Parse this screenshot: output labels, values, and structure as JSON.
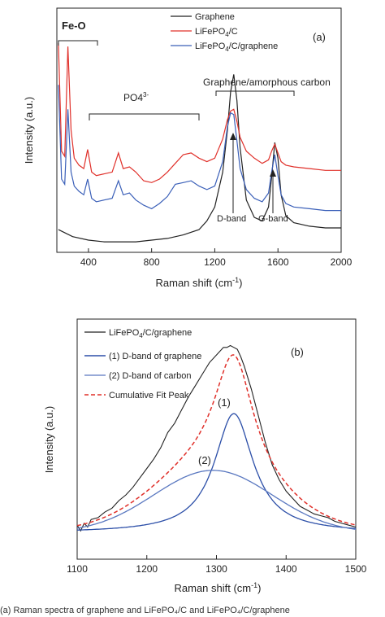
{
  "chart_data": [
    {
      "type": "line",
      "panel_label": "(a)",
      "xlabel": "Raman shift (cm",
      "xlabel_sup": "-1",
      "xlabel_close": ")",
      "ylabel": "Intensity (a.u.)",
      "xlim": [
        200,
        2000
      ],
      "xticks": [
        400,
        800,
        1200,
        1600,
        2000
      ],
      "legend": [
        {
          "name": "Graphene",
          "color": "#222222"
        },
        {
          "name": "LiFePO",
          "sub": "4",
          "rest": "/C",
          "color": "#e0302a"
        },
        {
          "name": "LiFePO",
          "sub": "4",
          "rest": "/C/graphene",
          "color": "#3a5fb8"
        }
      ],
      "annotations": {
        "fe_o": "Fe-O",
        "po4": "PO4",
        "po4_sup": "3-",
        "graphene_carbon": "Graphene/amorphous carbon",
        "d_band": "D-band",
        "g_band": "G-band"
      },
      "series": [
        {
          "name": "Graphene",
          "color": "#222222",
          "x": [
            210,
            300,
            400,
            500,
            600,
            700,
            800,
            900,
            1000,
            1100,
            1150,
            1200,
            1250,
            1280,
            1300,
            1320,
            1340,
            1360,
            1400,
            1450,
            1500,
            1540,
            1560,
            1580,
            1600,
            1620,
            1650,
            1700,
            1800,
            1900,
            2000
          ],
          "y": [
            1.3,
            0.9,
            0.7,
            0.6,
            0.6,
            0.6,
            0.7,
            0.8,
            1.0,
            1.3,
            1.8,
            2.6,
            4.6,
            7.0,
            9.2,
            10.2,
            8.7,
            6.0,
            3.0,
            2.0,
            1.8,
            2.6,
            4.3,
            6.3,
            5.4,
            3.3,
            2.1,
            1.7,
            1.5,
            1.4,
            1.4
          ]
        },
        {
          "name": "LiFePO4/C",
          "color": "#e0302a",
          "x": [
            210,
            230,
            250,
            270,
            290,
            310,
            340,
            370,
            395,
            420,
            450,
            500,
            550,
            590,
            620,
            660,
            700,
            750,
            800,
            850,
            900,
            950,
            1000,
            1050,
            1100,
            1150,
            1200,
            1250,
            1280,
            1300,
            1320,
            1340,
            1360,
            1400,
            1450,
            1500,
            1540,
            1560,
            1580,
            1600,
            1620,
            1650,
            1700,
            1800,
            1900,
            2000
          ],
          "y": [
            12.0,
            5.8,
            5.5,
            11.8,
            7.0,
            5.4,
            5.0,
            4.8,
            5.9,
            4.6,
            4.4,
            4.5,
            4.6,
            5.7,
            4.8,
            4.9,
            4.6,
            4.1,
            4.0,
            4.2,
            4.6,
            5.1,
            5.6,
            5.7,
            5.4,
            5.2,
            5.4,
            6.5,
            7.6,
            8.1,
            8.2,
            7.5,
            6.6,
            5.8,
            5.4,
            5.1,
            5.3,
            5.8,
            6.2,
            5.7,
            5.2,
            5.0,
            4.9,
            4.8,
            4.7,
            4.7
          ]
        },
        {
          "name": "LiFePO4/C/graphene",
          "color": "#3a5fb8",
          "x": [
            210,
            230,
            250,
            270,
            290,
            310,
            340,
            370,
            395,
            420,
            450,
            500,
            550,
            590,
            620,
            660,
            700,
            750,
            800,
            850,
            900,
            950,
            1000,
            1050,
            1100,
            1150,
            1200,
            1250,
            1280,
            1300,
            1320,
            1340,
            1360,
            1400,
            1450,
            1500,
            1540,
            1560,
            1580,
            1600,
            1620,
            1650,
            1700,
            1800,
            1900,
            2000
          ],
          "y": [
            9.6,
            4.2,
            3.9,
            8.2,
            4.6,
            3.8,
            3.5,
            3.3,
            4.2,
            3.1,
            2.9,
            3.0,
            3.1,
            4.1,
            3.3,
            3.4,
            3.0,
            2.7,
            2.5,
            2.8,
            3.2,
            3.9,
            4.0,
            4.1,
            3.8,
            3.6,
            3.8,
            5.2,
            7.2,
            8.0,
            7.9,
            6.4,
            4.8,
            3.6,
            3.1,
            2.9,
            3.4,
            4.6,
            5.6,
            4.4,
            3.3,
            2.8,
            2.6,
            2.5,
            2.4,
            2.4
          ]
        }
      ]
    },
    {
      "type": "line",
      "panel_label": "(b)",
      "xlabel": "Raman shift (cm",
      "xlabel_sup": "-1",
      "xlabel_close": ")",
      "ylabel": "Intensity (a.u.)",
      "xlim": [
        1100,
        1500
      ],
      "xticks": [
        1100,
        1200,
        1300,
        1400,
        1500
      ],
      "peak_labels": [
        "(1)",
        "(2)"
      ],
      "legend": [
        {
          "name": "LiFePO",
          "sub": "4",
          "rest": "/C/graphene",
          "color": "#222222",
          "dash": false
        },
        {
          "name": "(1) D-band of graphene",
          "color": "#2c4fa8",
          "dash": false
        },
        {
          "name": "(2) D-band of carbon",
          "color": "#5a78c0",
          "dash": false
        },
        {
          "name": "Cumulative Fit Peak",
          "color": "#e0302a",
          "dash": true
        }
      ],
      "series": [
        {
          "name": "LiFePO4/C/graphene",
          "color": "#222222",
          "x": [
            1100,
            1105,
            1110,
            1115,
            1120,
            1130,
            1140,
            1150,
            1160,
            1170,
            1180,
            1190,
            1200,
            1210,
            1220,
            1230,
            1240,
            1250,
            1260,
            1270,
            1280,
            1290,
            1300,
            1310,
            1315,
            1320,
            1325,
            1330,
            1335,
            1340,
            1350,
            1360,
            1370,
            1380,
            1390,
            1400,
            1410,
            1420,
            1430,
            1440,
            1450,
            1460,
            1470,
            1480,
            1490,
            1500
          ],
          "y": [
            0.06,
            0.03,
            0.07,
            0.05,
            0.09,
            0.1,
            0.13,
            0.15,
            0.19,
            0.22,
            0.26,
            0.31,
            0.36,
            0.41,
            0.47,
            0.55,
            0.6,
            0.67,
            0.74,
            0.8,
            0.86,
            0.92,
            0.96,
            1.0,
            1.0,
            1.01,
            1.0,
            0.99,
            0.95,
            0.9,
            0.78,
            0.64,
            0.5,
            0.38,
            0.3,
            0.24,
            0.2,
            0.16,
            0.14,
            0.12,
            0.11,
            0.1,
            0.08,
            0.07,
            0.06,
            0.05
          ]
        },
        {
          "name": "(1) D-band of graphene",
          "color": "#2c4fa8",
          "fit": {
            "type": "lorentzian",
            "center": 1325,
            "hwhm": 34,
            "amp": 0.63,
            "base": 0.02
          }
        },
        {
          "name": "(2) D-band of carbon",
          "color": "#5a78c0",
          "fit": {
            "type": "gaussian",
            "center": 1295,
            "sigma": 85,
            "amp": 0.33,
            "base": 0.02
          }
        },
        {
          "name": "Cumulative Fit Peak",
          "color": "#e0302a",
          "dash": true,
          "fit": {
            "type": "sum"
          }
        }
      ]
    }
  ],
  "caption": "(a) Raman spectra of graphene and LiFePO₄/C and LiFePO₄/C/graphene"
}
